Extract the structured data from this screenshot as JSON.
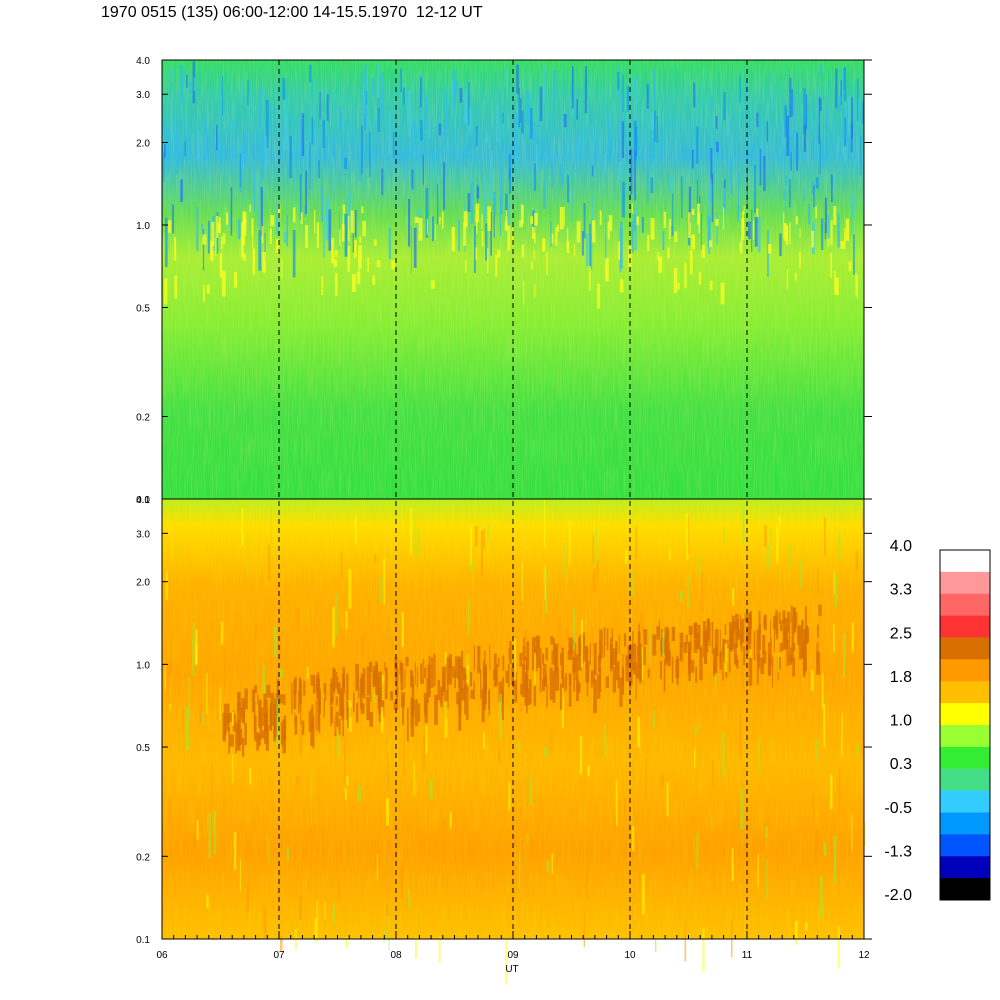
{
  "title": "1970 0515 (135) 06:00-12:00 14-15.5.1970  12-12 UT",
  "chart_data": {
    "type": "heatmap",
    "panels": [
      {
        "name": "",
        "dominant": "green-cyan-blue",
        "features": "blue/cyan band at 1.5-4.0, yellow patches near 0.7-1.2"
      },
      {
        "name": "",
        "dominant": "orange-yellow",
        "features": "dark orange band near 0.7-1.4 rising toward 1.4 around 10:30"
      }
    ],
    "y_axis": {
      "scale": "log",
      "range": [
        0.1,
        4.0
      ],
      "ticks": [
        "0.1",
        "0.2",
        "0.5",
        "1.0",
        "2.0",
        "3.0",
        "4.0"
      ],
      "tick_values": [
        0.1,
        0.2,
        0.5,
        1.0,
        2.0,
        3.0,
        4.0
      ]
    },
    "x_axis": {
      "label": "UT",
      "range": [
        6,
        12
      ],
      "ticks": [
        "06",
        "07",
        "08",
        "09",
        "10",
        "11",
        "12"
      ],
      "tick_values": [
        6,
        7,
        8,
        9,
        10,
        11,
        12
      ],
      "dashed_lines_at": [
        7,
        8,
        9,
        10,
        11
      ]
    },
    "colorbar": {
      "labels": [
        "4.0",
        "3.3",
        "2.5",
        "1.8",
        "1.0",
        "0.3",
        "-0.5",
        "-1.3",
        "-2.0"
      ],
      "colors": [
        "#ffffff",
        "#ff9999",
        "#ff6666",
        "#ff3333",
        "#d87000",
        "#ff9900",
        "#ffbf00",
        "#ffff00",
        "#99ff33",
        "#33ee33",
        "#44dd88",
        "#33ccff",
        "#0099ff",
        "#0055ff",
        "#0000bb",
        "#000000"
      ]
    }
  }
}
